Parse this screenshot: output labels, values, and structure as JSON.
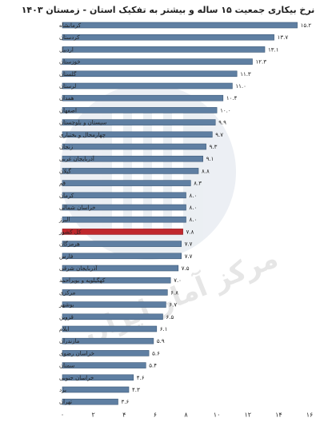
{
  "chart_data": {
    "type": "bar",
    "orientation": "horizontal",
    "title": "نرخ بیکاری جمعیت ۱۵ ساله و بیشتر به تفکیک استان - زمستان ۱۴۰۳",
    "categories": [
      "کرمانشاه",
      "کردستان",
      "اردبیل",
      "خوزستان",
      "گلستان",
      "لرستان",
      "همدان",
      "اصفهان",
      "سیستان و بلوچستان",
      "چهارمحال و بختیاری",
      "زنجان",
      "آذربایجان غربی",
      "گیلان",
      "قم",
      "کرمان",
      "خراسان شمالی",
      "البرز",
      "کل کشور",
      "هرمزگان",
      "فارس",
      "آذربایجان شرقی",
      "کهگیلویه و بویراحمد",
      "مرکزی",
      "بوشهر",
      "قزوین",
      "ایلام",
      "مازندران",
      "خراسان رضوی",
      "سمنان",
      "خراسان جنوبی",
      "یزد",
      "تهران"
    ],
    "values": [
      15.2,
      13.7,
      13.1,
      12.3,
      11.3,
      11.0,
      10.4,
      10.0,
      9.9,
      9.7,
      9.3,
      9.1,
      8.8,
      8.3,
      8.0,
      8.0,
      8.0,
      7.8,
      7.7,
      7.7,
      7.5,
      7.0,
      6.8,
      6.7,
      6.5,
      6.1,
      5.9,
      5.6,
      5.4,
      4.6,
      4.3,
      3.6
    ],
    "value_labels": [
      "۱۵.۲",
      "۱۳.۷",
      "۱۳.۱",
      "۱۲.۳",
      "۱۱.۳",
      "۱۱.۰",
      "۱۰.۴",
      "۱۰.۰",
      "۹.۹",
      "۹.۷",
      "۹.۳",
      "۹.۱",
      "۸.۸",
      "۸.۳",
      "۸.۰",
      "۸.۰",
      "۸.۰",
      "۷.۸",
      "۷.۷",
      "۷.۷",
      "۷.۵",
      "۷.۰",
      "۶.۸",
      "۶.۷",
      "۶.۵",
      "۶.۱",
      "۵.۹",
      "۵.۶",
      "۵.۴",
      "۴.۶",
      "۴.۳",
      "۳.۶"
    ],
    "highlight_category": "کل کشور",
    "xlim": [
      0,
      16
    ],
    "x_ticks": [
      0,
      2,
      4,
      6,
      8,
      10,
      12,
      14,
      16
    ],
    "x_tick_labels": [
      "۰",
      "۲",
      "۴",
      "۶",
      "۸",
      "۱۰",
      "۱۲",
      "۱۴",
      "۱۶"
    ],
    "xlabel": "",
    "ylabel": "",
    "grid": false,
    "colors": {
      "bar": "#5f7fa2",
      "bar_edge": "#3e5a78",
      "highlight": "#c0282d",
      "highlight_edge": "#8e1a1e"
    }
  },
  "watermark": "مرکز آمار ایران"
}
